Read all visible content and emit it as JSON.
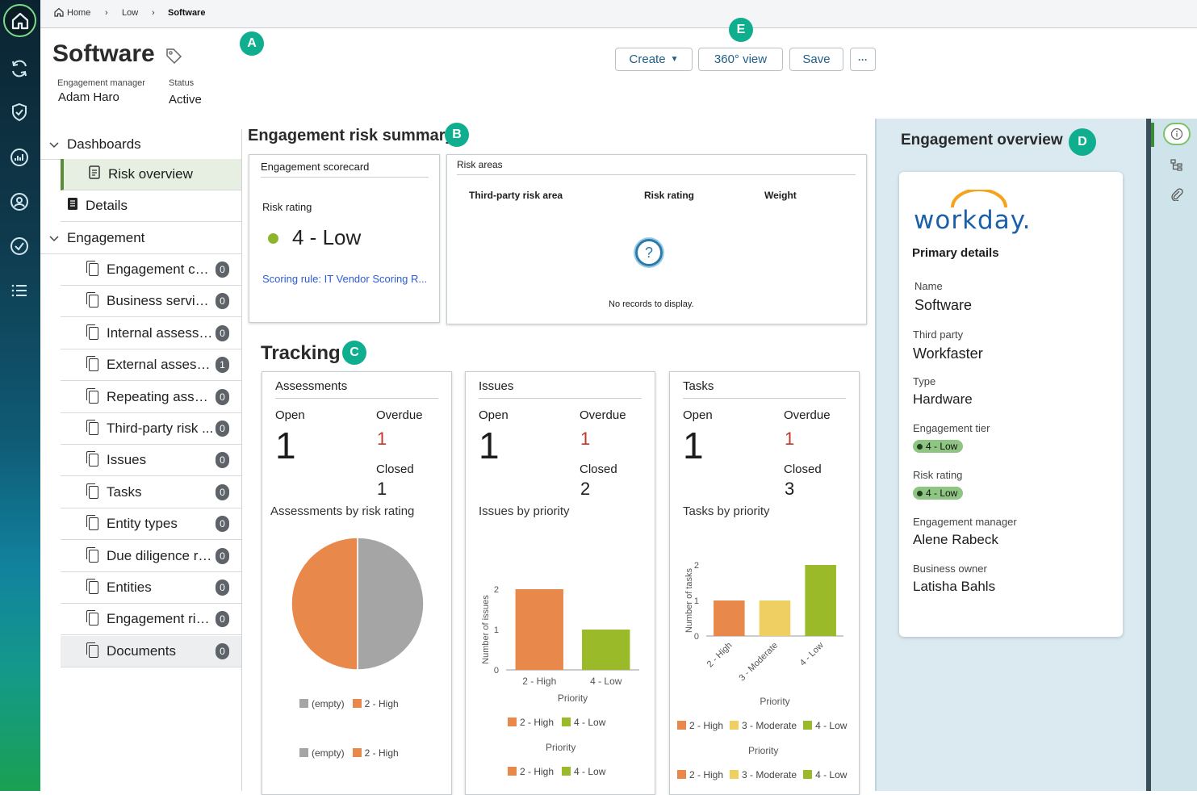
{
  "breadcrumb": {
    "items": [
      "Home",
      "Low",
      "Software"
    ]
  },
  "header": {
    "title": "Software",
    "engagement_manager_label": "Engagement manager",
    "engagement_manager": "Adam Haro",
    "status_label": "Status",
    "status": "Active"
  },
  "toolbar": {
    "create": "Create",
    "view360": "360° view",
    "save": "Save",
    "more": "···"
  },
  "markers": {
    "a": "A",
    "b": "B",
    "c": "C",
    "d": "D",
    "e": "E"
  },
  "nav": {
    "dashboards": "Dashboards",
    "risk_overview": "Risk overview",
    "details": "Details",
    "engagement": "Engagement",
    "items": [
      {
        "label": "Engagement con...",
        "count": "0"
      },
      {
        "label": "Business services",
        "count": "0"
      },
      {
        "label": "Internal assessm...",
        "count": "0"
      },
      {
        "label": "External assessm...",
        "count": "1"
      },
      {
        "label": "Repeating assess...",
        "count": "0"
      },
      {
        "label": "Third-party risk ...",
        "count": "0"
      },
      {
        "label": "Issues",
        "count": "0"
      },
      {
        "label": "Tasks",
        "count": "0"
      },
      {
        "label": "Entity types",
        "count": "0"
      },
      {
        "label": "Due diligence re...",
        "count": "0"
      },
      {
        "label": "Entities",
        "count": "0"
      },
      {
        "label": "Engagement risk...",
        "count": "0"
      },
      {
        "label": "Documents",
        "count": "0"
      }
    ]
  },
  "risk_summary": {
    "title": "Engagement risk summary",
    "scorecard": {
      "title": "Engagement scorecard",
      "risk_label": "Risk rating",
      "risk_value": "4 - Low",
      "scoring_rule": "Scoring rule: IT Vendor Scoring R...",
      "dot_color": "#8db52c"
    },
    "risk_areas": {
      "title": "Risk areas",
      "col1": "Third-party risk area",
      "col2": "Risk rating",
      "col3": "Weight",
      "empty": "No records to display.",
      "empty_icon": "?"
    }
  },
  "tracking": {
    "title": "Tracking",
    "open_label": "Open",
    "overdue_label": "Overdue",
    "closed_label": "Closed",
    "assessments": {
      "title": "Assessments",
      "open": "1",
      "overdue": "1",
      "closed": "1",
      "chart_title": "Assessments by risk rating",
      "legend": [
        "(empty)",
        "2 - High"
      ]
    },
    "issues": {
      "title": "Issues",
      "open": "1",
      "overdue": "1",
      "closed": "2",
      "chart_title": "Issues by priority",
      "ylabel": "Number of issues",
      "xlabel": "Priority",
      "legend": [
        "2 - High",
        "4 - Low"
      ]
    },
    "tasks": {
      "title": "Tasks",
      "open": "1",
      "overdue": "1",
      "closed": "3",
      "chart_title": "Tasks by priority",
      "ylabel": "Number of tasks",
      "xlabel": "Priority",
      "legend": [
        "2 - High",
        "3 - Moderate",
        "4 - Low"
      ]
    }
  },
  "overview": {
    "title": "Engagement overview",
    "logo": "workday.",
    "primary": "Primary details",
    "name_label": "Name",
    "name": "Software",
    "third_party_label": "Third party",
    "third_party": "Workfaster",
    "type_label": "Type",
    "type": "Hardware",
    "tier_label": "Engagement tier",
    "tier": "4 - Low",
    "risk_label": "Risk rating",
    "risk": "4 - Low",
    "manager_label": "Engagement manager",
    "manager": "Alene Rabeck",
    "owner_label": "Business owner",
    "owner": "Latisha Bahls"
  },
  "colors": {
    "high": "#e8884a",
    "moderate": "#f0cf62",
    "low": "#9aba2a",
    "empty": "#a5a5a5",
    "accent": "#0fae8f",
    "link": "#2c5bd6",
    "overdue": "#c0392b"
  },
  "chart_data": [
    {
      "type": "pie",
      "title": "Assessments by risk rating",
      "categories": [
        "(empty)",
        "2 - High"
      ],
      "values": [
        1,
        1
      ],
      "legend": [
        "(empty)",
        "2 - High"
      ]
    },
    {
      "type": "bar",
      "title": "Issues by priority",
      "categories": [
        "2 - High",
        "4 - Low"
      ],
      "values": [
        2,
        1
      ],
      "xlabel": "Priority",
      "ylabel": "Number of issues",
      "ylim": [
        0,
        2
      ],
      "yticks": [
        0,
        1,
        2
      ]
    },
    {
      "type": "bar",
      "title": "Tasks by priority",
      "categories": [
        "2 - High",
        "3 - Moderate",
        "4 - Low"
      ],
      "values": [
        1,
        1,
        2
      ],
      "xlabel": "Priority",
      "ylabel": "Number of tasks",
      "ylim": [
        0,
        2
      ],
      "yticks": [
        0,
        1,
        2
      ]
    }
  ]
}
